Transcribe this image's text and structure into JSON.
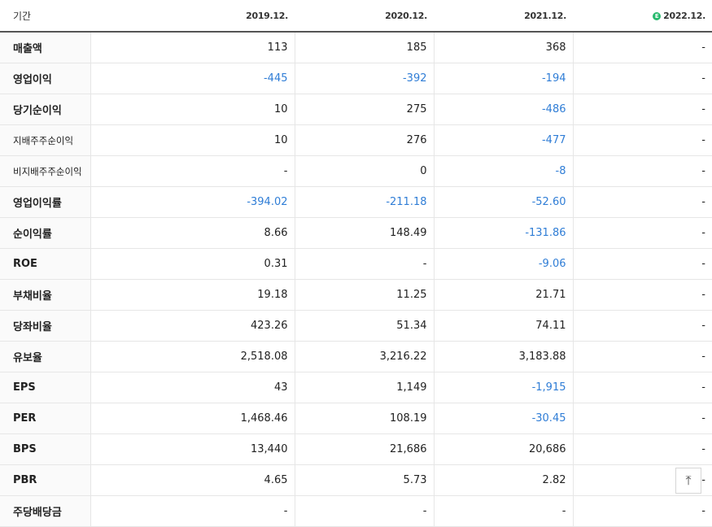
{
  "header": {
    "period_label": "기간",
    "years": [
      "2019.12.",
      "2020.12.",
      "2021.12.",
      "2022.12."
    ],
    "estimate_badge": "E"
  },
  "rows": [
    {
      "label": "매출액",
      "values": [
        "113",
        "185",
        "368",
        "-"
      ]
    },
    {
      "label": "영업이익",
      "values": [
        "-445",
        "-392",
        "-194",
        "-"
      ]
    },
    {
      "label": "당기순이익",
      "values": [
        "10",
        "275",
        "-486",
        "-"
      ]
    },
    {
      "label": "지배주주순이익",
      "values": [
        "10",
        "276",
        "-477",
        "-"
      ]
    },
    {
      "label": "비지배주주순이익",
      "values": [
        "-",
        "0",
        "-8",
        "-"
      ]
    },
    {
      "label": "영업이익률",
      "values": [
        "-394.02",
        "-211.18",
        "-52.60",
        "-"
      ]
    },
    {
      "label": "순이익률",
      "values": [
        "8.66",
        "148.49",
        "-131.86",
        "-"
      ]
    },
    {
      "label": "ROE",
      "values": [
        "0.31",
        "-",
        "-9.06",
        "-"
      ]
    },
    {
      "label": "부채비율",
      "values": [
        "19.18",
        "11.25",
        "21.71",
        "-"
      ]
    },
    {
      "label": "당좌비율",
      "values": [
        "423.26",
        "51.34",
        "74.11",
        "-"
      ]
    },
    {
      "label": "유보율",
      "values": [
        "2,518.08",
        "3,216.22",
        "3,183.88",
        "-"
      ]
    },
    {
      "label": "EPS",
      "values": [
        "43",
        "1,149",
        "-1,915",
        "-"
      ]
    },
    {
      "label": "PER",
      "values": [
        "1,468.46",
        "108.19",
        "-30.45",
        "-"
      ]
    },
    {
      "label": "BPS",
      "values": [
        "13,440",
        "21,686",
        "20,686",
        "-"
      ]
    },
    {
      "label": "PBR",
      "values": [
        "4.65",
        "5.73",
        "2.82",
        "-"
      ]
    },
    {
      "label": "주당배당금",
      "values": [
        "-",
        "-",
        "-",
        "-"
      ]
    }
  ],
  "scroll_top": {
    "icon": "arrow-up-to-top-icon",
    "glyph": "⤒"
  },
  "colors": {
    "negative": "#2f7dd6",
    "estimate": "#27b96d"
  }
}
